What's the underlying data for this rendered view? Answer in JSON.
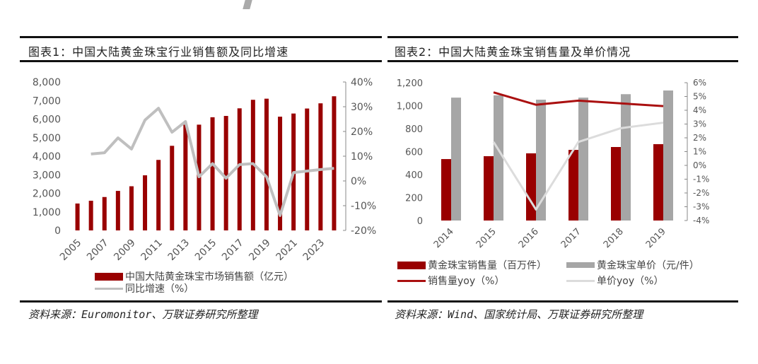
{
  "colors": {
    "bar_primary": "#990000",
    "bar_secondary": "#a6a6a6",
    "line_yoy_gray": "#bfbfbf",
    "line_sales_yoy": "#aa1010",
    "line_price_yoy": "#dcdcdc",
    "axis": "#888888"
  },
  "panel1": {
    "title": "图表1：中国大陆黄金珠宝行业销售额及同比增速",
    "source": "资料来源：Euromonitor、万联证券研究所整理",
    "legend": {
      "bar_label": "中国大陆黄金珠宝市场销售额（亿元）",
      "line_label": "同比增速（%）"
    }
  },
  "panel2": {
    "title": "图表2：中国大陆黄金珠宝销售量及单价情况",
    "source": "资料来源：Wind、国家统计局、万联证券研究所整理",
    "legend": {
      "bar1_label": "黄金珠宝销售量（百万件）",
      "bar2_label": "黄金珠宝单价（元/件）",
      "line1_label": "销售量yoy（%）",
      "line2_label": "单价yoy（%）"
    }
  },
  "chart_data": [
    {
      "type": "bar",
      "title": "图表1：中国大陆黄金珠宝行业销售额及同比增速",
      "categories": [
        "2005",
        "2006",
        "2007",
        "2008",
        "2009",
        "2010",
        "2011",
        "2012",
        "2013",
        "2014",
        "2015",
        "2016",
        "2017",
        "2018",
        "2019",
        "2020",
        "2021",
        "2022",
        "2023",
        "2024"
      ],
      "x_tick_labels": [
        "2005",
        "2007",
        "2009",
        "2011",
        "2013",
        "2015",
        "2017",
        "2019",
        "2021",
        "2023"
      ],
      "series": [
        {
          "name": "中国大陆黄金珠宝市场销售额（亿元）",
          "type": "bar",
          "axis": "left",
          "values": [
            1450,
            1600,
            1800,
            2130,
            2380,
            2970,
            3800,
            4560,
            5700,
            5700,
            6100,
            6170,
            6580,
            7040,
            7100,
            6130,
            6300,
            6570,
            6850,
            7230
          ]
        },
        {
          "name": "同比增速（%）",
          "type": "line",
          "axis": "right",
          "values": [
            null,
            10.9,
            11.4,
            17.4,
            12.9,
            24.6,
            29.4,
            19.7,
            24.0,
            1.7,
            7.0,
            1.1,
            6.6,
            7.0,
            1.7,
            -14.0,
            3.4,
            4.0,
            4.6,
            5.1
          ]
        }
      ],
      "ylim": [
        0,
        8000
      ],
      "y_ticks": [
        "0",
        "1,000",
        "2,000",
        "3,000",
        "4,000",
        "5,000",
        "6,000",
        "7,000",
        "8,000"
      ],
      "y2lim": [
        -20,
        40
      ],
      "y2_ticks": [
        "-20%",
        "-10%",
        "0%",
        "10%",
        "20%",
        "30%",
        "40%"
      ],
      "xlabel": "",
      "ylabel": "",
      "grid": false,
      "legend_position": "bottom"
    },
    {
      "type": "bar",
      "title": "图表2：中国大陆黄金珠宝销售量及单价情况",
      "categories": [
        "2014",
        "2015",
        "2016",
        "2017",
        "2018",
        "2019"
      ],
      "series": [
        {
          "name": "黄金珠宝销售量（百万件）",
          "type": "bar",
          "axis": "left",
          "values": [
            535,
            560,
            585,
            615,
            640,
            665
          ]
        },
        {
          "name": "黄金珠宝单价（元/件）",
          "type": "bar",
          "axis": "left",
          "values": [
            1070,
            1090,
            1052,
            1070,
            1100,
            1132
          ]
        },
        {
          "name": "销售量yoy（%）",
          "type": "line",
          "axis": "right",
          "values": [
            null,
            5.3,
            4.4,
            4.7,
            4.5,
            4.3
          ]
        },
        {
          "name": "单价yoy（%）",
          "type": "line",
          "axis": "right",
          "values": [
            null,
            1.7,
            -3.2,
            1.7,
            2.7,
            3.1
          ]
        }
      ],
      "ylim": [
        0,
        1200
      ],
      "y_ticks": [
        "0",
        "200",
        "400",
        "600",
        "800",
        "1,000",
        "1,200"
      ],
      "y2lim": [
        -4,
        6
      ],
      "y2_ticks": [
        "-4%",
        "-3%",
        "-2%",
        "-1%",
        "0%",
        "1%",
        "2%",
        "3%",
        "4%",
        "5%",
        "6%"
      ],
      "xlabel": "",
      "ylabel": "",
      "grid": false,
      "legend_position": "bottom"
    }
  ]
}
